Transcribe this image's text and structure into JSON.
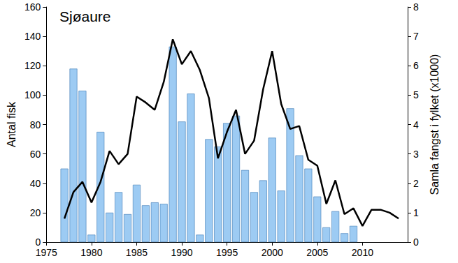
{
  "chart_data": {
    "type": "bar",
    "title": "Sjøaure",
    "x_label": null,
    "y_label": "Antal fisk",
    "y2_label": "Samla fangst i fylket (x1000)",
    "x": [
      1977,
      1978,
      1979,
      1980,
      1981,
      1982,
      1983,
      1984,
      1985,
      1986,
      1987,
      1988,
      1989,
      1990,
      1991,
      1992,
      1993,
      1994,
      1995,
      1996,
      1997,
      1998,
      1999,
      2000,
      2001,
      2002,
      2003,
      2004,
      2005,
      2006,
      2007,
      2008,
      2009,
      2010,
      2011,
      2012,
      2013,
      2014
    ],
    "series": [
      {
        "type": "bar",
        "color": "#9dcbf3",
        "values": [
          50,
          118,
          103,
          5,
          75,
          20,
          34,
          19,
          39,
          25,
          27,
          26,
          133,
          82,
          101,
          5,
          70,
          65,
          81,
          86,
          49,
          34,
          42,
          71,
          35,
          91,
          59,
          50,
          31,
          10,
          21,
          6,
          11,
          null,
          null,
          null,
          null,
          null
        ]
      },
      {
        "type": "line",
        "axis": "y2",
        "color": "#000000",
        "values": [
          0.8,
          1.7,
          2.05,
          1.35,
          2.05,
          3.1,
          2.65,
          3.0,
          4.95,
          4.75,
          4.5,
          5.45,
          6.9,
          6.05,
          6.5,
          5.85,
          4.9,
          2.85,
          3.75,
          4.5,
          3.0,
          3.45,
          5.2,
          6.5,
          4.7,
          3.85,
          3.95,
          2.8,
          2.6,
          1.3,
          2.1,
          0.95,
          1.15,
          0.55,
          1.1,
          1.1,
          1.0,
          0.8
        ]
      }
    ],
    "xlim": [
      1975,
      2015
    ],
    "xticks": [
      1975,
      1980,
      1985,
      1990,
      1995,
      2000,
      2005,
      2010
    ],
    "ylim": [
      0,
      160
    ],
    "yticks": [
      0,
      20,
      40,
      60,
      80,
      100,
      120,
      140,
      160
    ],
    "y2lim": [
      0,
      8
    ],
    "y2ticks": [
      0,
      1,
      2,
      3,
      4,
      5,
      6,
      7,
      8
    ],
    "grid": false
  }
}
